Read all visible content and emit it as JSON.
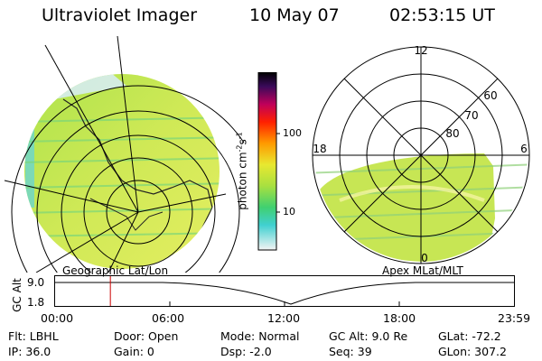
{
  "header": {
    "instrument": "Ultraviolet Imager",
    "date": "10 May 07",
    "time": "02:53:15 UT"
  },
  "colorbar": {
    "unit": "photon cm",
    "unit_exp1": "-2",
    "unit_s": "s",
    "unit_exp2": "-1",
    "tick_high": "100",
    "tick_low": "10"
  },
  "left_panel": {
    "caption": "Geographic Lat/Lon"
  },
  "right_panel": {
    "caption": "Apex MLat/MLT",
    "mlt_top": "12",
    "mlt_left": "18",
    "mlt_right": "6",
    "mlt_bottom": "0",
    "lat_60": "60",
    "lat_70": "70",
    "lat_80": "80"
  },
  "altitude_plot": {
    "ylabel": "GC Alt",
    "y_high": "9.0",
    "y_low": "1.8",
    "x_ticks": [
      "00:00",
      "06:00",
      "12:00",
      "18:00",
      "23:59"
    ],
    "marker_hour": 2.89
  },
  "info": {
    "flt": "Flt: LBHL",
    "ip": "IP: 36.0",
    "door": "Door: Open",
    "gain": "Gain:  0",
    "mode": "Mode: Normal",
    "dsp": "Dsp:    -2.0",
    "gcalt": "GC Alt: 9.0 Re",
    "seq": "Seq: 39",
    "glat": "GLat: -72.2",
    "glon": "GLon: 307.2"
  },
  "colors": {
    "image_green": "#b8ea4a",
    "image_yellow": "#e2ec5a",
    "image_cyan": "#4cd8c8",
    "marker": "#cc0000"
  }
}
